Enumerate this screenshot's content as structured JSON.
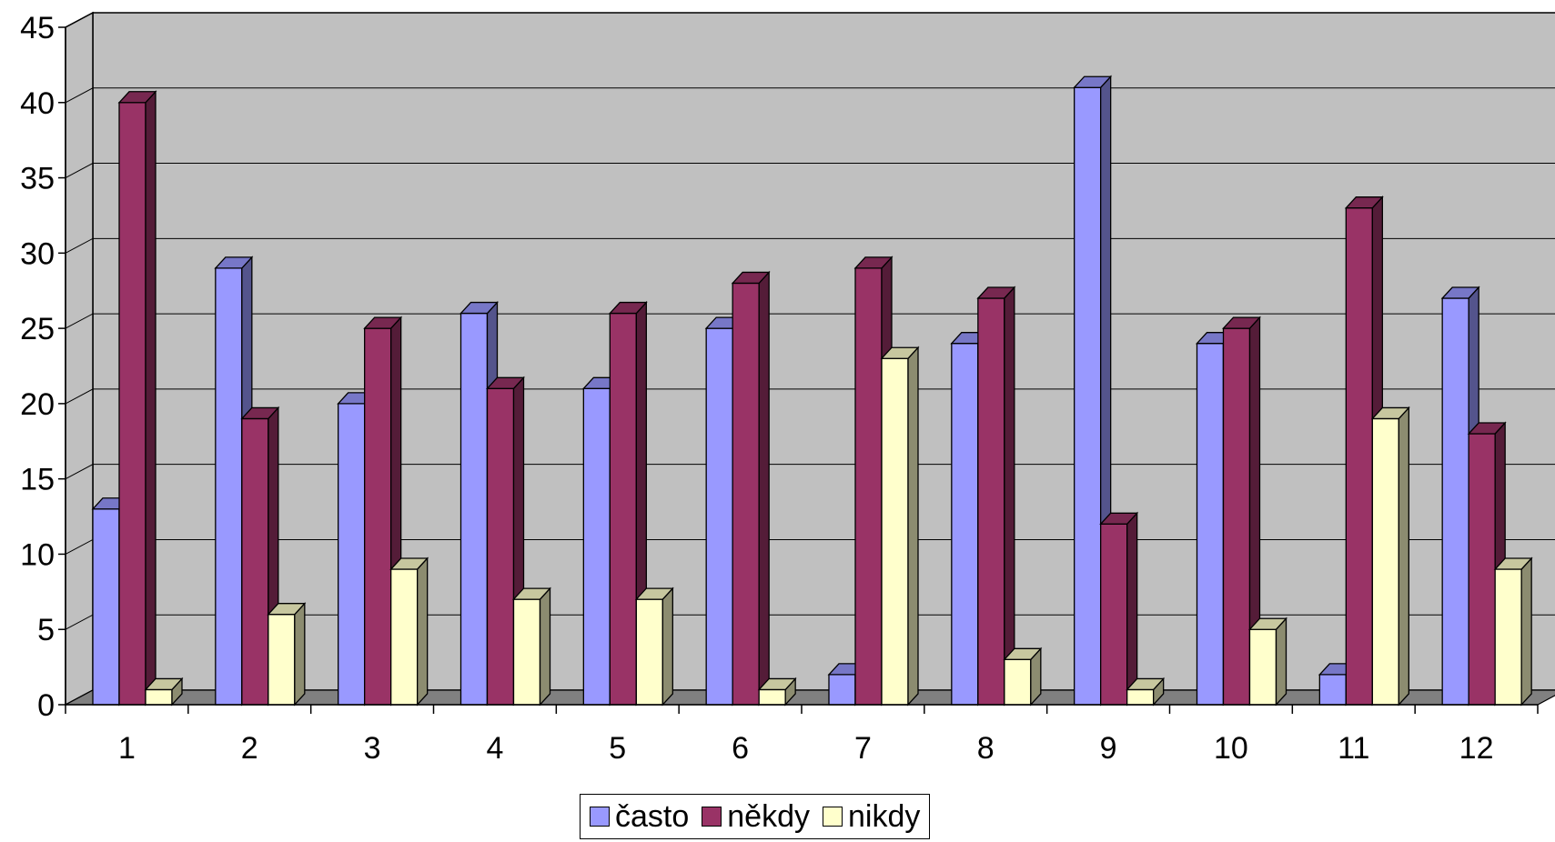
{
  "chart_data": {
    "type": "bar",
    "style": "3d-clustered-column",
    "categories": [
      "1",
      "2",
      "3",
      "4",
      "5",
      "6",
      "7",
      "8",
      "9",
      "10",
      "11",
      "12"
    ],
    "series": [
      {
        "name": "často",
        "color": "#9999ff",
        "values": [
          13,
          29,
          20,
          26,
          21,
          25,
          2,
          24,
          41,
          24,
          2,
          27
        ]
      },
      {
        "name": "někdy",
        "color": "#993366",
        "values": [
          40,
          19,
          25,
          21,
          26,
          28,
          29,
          27,
          12,
          25,
          33,
          18
        ]
      },
      {
        "name": "nikdy",
        "color": "#ffffcc",
        "values": [
          1,
          6,
          9,
          7,
          7,
          1,
          23,
          3,
          1,
          5,
          19,
          9
        ]
      }
    ],
    "yticks": [
      "0",
      "5",
      "10",
      "15",
      "20",
      "25",
      "30",
      "35",
      "40",
      "45"
    ],
    "ylim": [
      0,
      45
    ],
    "grid": true,
    "legend_position": "bottom",
    "wall_color": "#c0c0c0",
    "floor_color": "#808080"
  }
}
